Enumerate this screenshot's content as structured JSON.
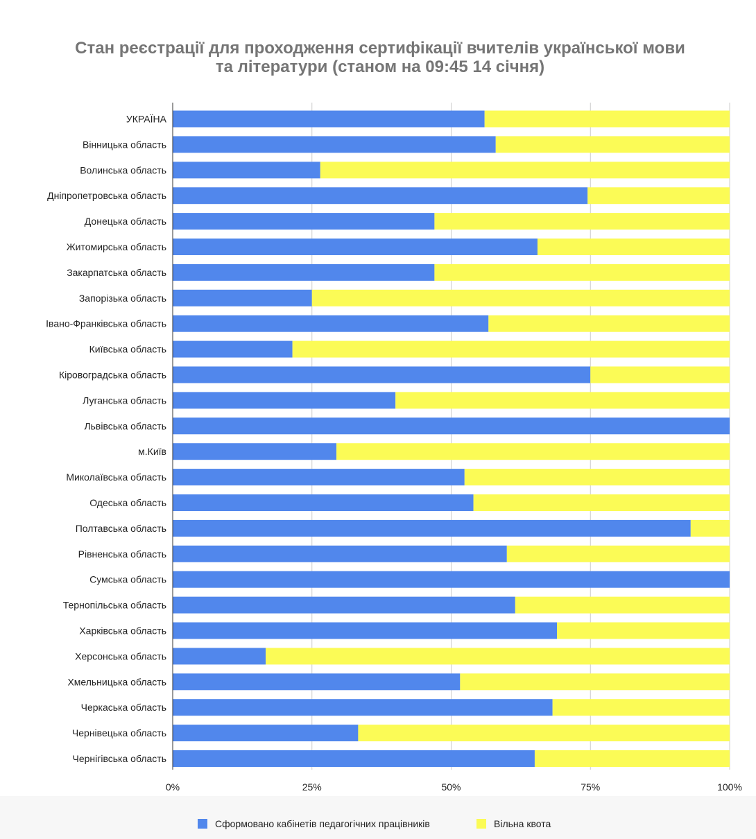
{
  "chart_data": {
    "type": "bar",
    "orientation": "horizontal",
    "stacked": "percent",
    "title_lines": [
      "Стан реєстрації для проходження сертифікації вчителів української мови",
      "та літератури (станом на 09:45 14 січня)"
    ],
    "categories": [
      "УКРАЇНА",
      "Вінницька область",
      "Волинська область",
      "Дніпропетровська область",
      "Донецька область",
      "Житомирська область",
      "Закарпатська область",
      "Запорізька область",
      "Івано-Франківська область",
      "Київська область",
      "Кіровоградська область",
      "Луганська область",
      "Львівська область",
      "м.Київ",
      "Миколаївська область",
      "Одеська область",
      "Полтавська область",
      "Рівненська область",
      "Сумська область",
      "Тернопільська область",
      "Харківська область",
      "Херсонська область",
      "Хмельницька область",
      "Черкаська область",
      "Чернівецька область",
      "Чернігівська область"
    ],
    "series": [
      {
        "name": "Сформовано кабінетів педагогічних працівників",
        "color": "#5187ec",
        "values": [
          56,
          58,
          26.5,
          74.5,
          47,
          65.5,
          47,
          25,
          56.7,
          21.5,
          75,
          40,
          100,
          29.4,
          52.4,
          54,
          93,
          60,
          100,
          61.5,
          69,
          16.7,
          51.6,
          68.2,
          33.3,
          65
        ]
      },
      {
        "name": "Вільна квота",
        "color": "#fbfb56",
        "values": [
          44,
          42,
          73.5,
          25.5,
          53,
          34.5,
          53,
          75,
          43.3,
          78.5,
          25,
          60,
          0,
          70.6,
          47.6,
          46,
          7,
          40,
          0,
          38.5,
          31,
          83.3,
          48.4,
          31.8,
          66.7,
          35
        ]
      }
    ],
    "x_ticks": [
      "0%",
      "25%",
      "50%",
      "75%",
      "100%"
    ],
    "xlim": [
      0,
      100
    ],
    "grid": true,
    "legend_position": "bottom"
  }
}
